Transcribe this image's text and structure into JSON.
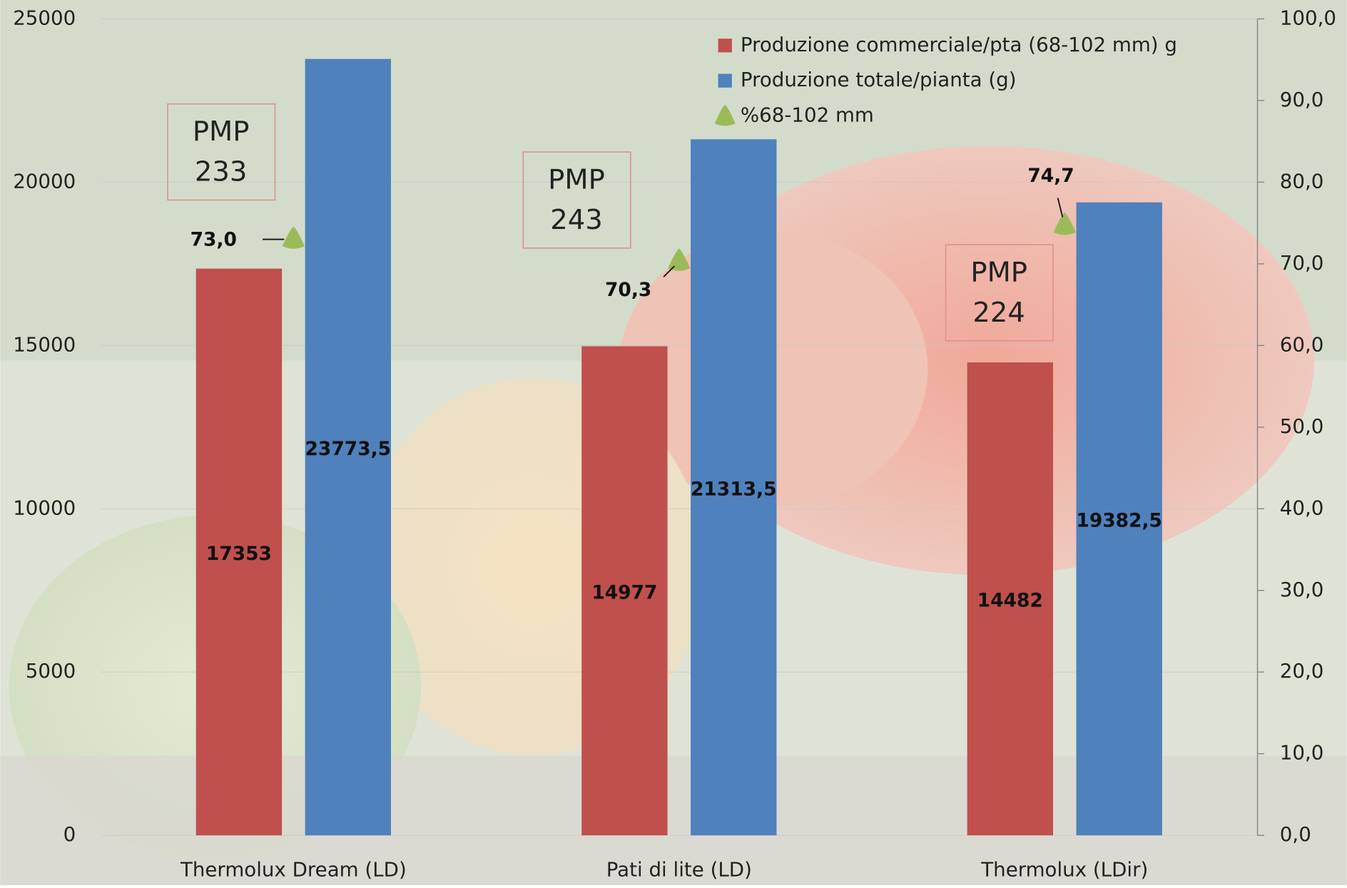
{
  "chart_data": {
    "type": "bar",
    "categories": [
      "Thermolux Dream (LD)",
      "Pati di lite (LD)",
      "Thermolux (LDir)"
    ],
    "series": [
      {
        "name": "Produzione commerciale/pta (68-102 mm) g",
        "color": "#c0504d",
        "values": [
          17353,
          14977,
          14482
        ]
      },
      {
        "name": "Produzione totale/pianta (g)",
        "color": "#4f81bd",
        "values": [
          23773.5,
          21313.5,
          19382.5
        ],
        "value_labels": [
          "23773,5",
          "21313,5",
          "19382,5"
        ]
      },
      {
        "name": "%68-102 mm",
        "color": "#9bbb59",
        "type": "scatter",
        "axis": "y2",
        "values": [
          73.0,
          70.3,
          74.7
        ],
        "value_labels": [
          "73,0",
          "70,3",
          "74,7"
        ]
      }
    ],
    "ylim": [
      0,
      25000
    ],
    "yticks": [
      0,
      5000,
      10000,
      15000,
      20000,
      25000
    ],
    "y2lim": [
      0,
      100
    ],
    "y2ticks": [
      {
        "value": 0,
        "label": "0,0"
      },
      {
        "value": 10,
        "label": "10,0"
      },
      {
        "value": 20,
        "label": "20,0"
      },
      {
        "value": 30,
        "label": "30,0"
      },
      {
        "value": 40,
        "label": "40,0"
      },
      {
        "value": 50,
        "label": "50,0"
      },
      {
        "value": 60,
        "label": "60,0"
      },
      {
        "value": 70,
        "label": "70,0"
      },
      {
        "value": 80,
        "label": "80,0"
      },
      {
        "value": 90,
        "label": "90,0"
      },
      {
        "value": 100,
        "label": "100,0"
      }
    ],
    "annotations": [
      [
        "PMP",
        "233"
      ],
      [
        "PMP",
        "243"
      ],
      [
        "PMP",
        "224"
      ]
    ],
    "grid": true,
    "legend": "top-right"
  }
}
